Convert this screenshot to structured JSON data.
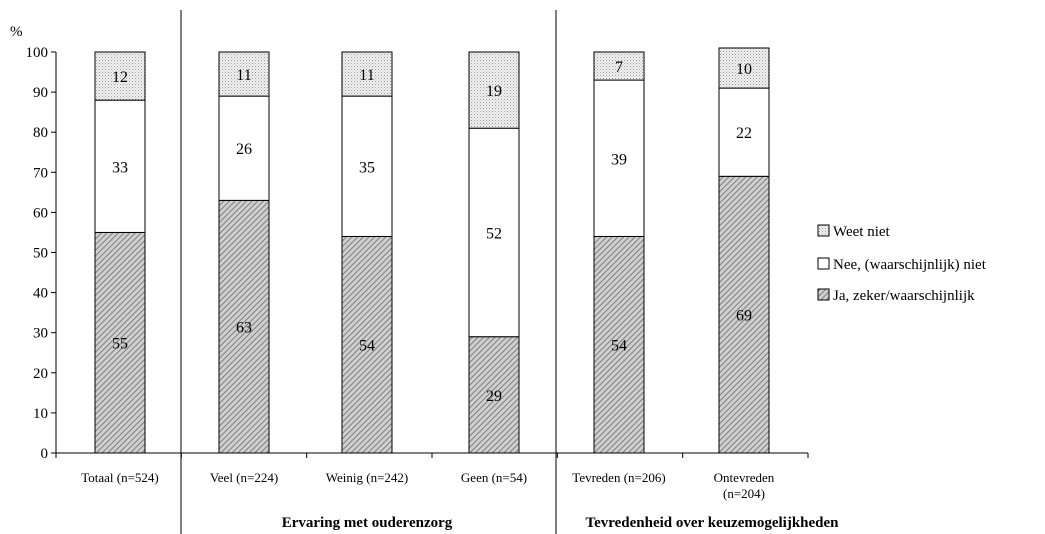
{
  "chart_data": {
    "type": "bar",
    "stacked": true,
    "unit_label": "%",
    "ylim": [
      0,
      100
    ],
    "yticks": [
      0,
      10,
      20,
      30,
      40,
      50,
      60,
      70,
      80,
      90,
      100
    ],
    "categories": [
      [
        "Totaal (n=524)"
      ],
      [
        "Veel (n=224)"
      ],
      [
        "Weinig (n=242)"
      ],
      [
        "Geen (n=54)"
      ],
      [
        "Tevreden (n=206)"
      ],
      [
        "Ontevreden",
        "(n=204)"
      ]
    ],
    "series": [
      {
        "name": "Ja, zeker/waarschijnlijk",
        "values": [
          55,
          63,
          54,
          29,
          54,
          69
        ],
        "fill": "hatch",
        "color": "#888888"
      },
      {
        "name": "Nee, (waarschijnlijk) niet",
        "values": [
          33,
          26,
          35,
          52,
          39,
          22
        ],
        "fill": "solid",
        "color": "#ffffff"
      },
      {
        "name": "Weet niet",
        "values": [
          12,
          11,
          11,
          19,
          7,
          10
        ],
        "fill": "dots",
        "color": "#bbbbbb"
      }
    ],
    "groups": [
      {
        "label": "Ervaring met ouderenzorg",
        "categories": [
          1,
          2,
          3
        ]
      },
      {
        "label": "Tevredenheid over keuzemogelijkheden",
        "categories": [
          4,
          5
        ]
      }
    ],
    "legend_position": "right",
    "grid": false
  }
}
